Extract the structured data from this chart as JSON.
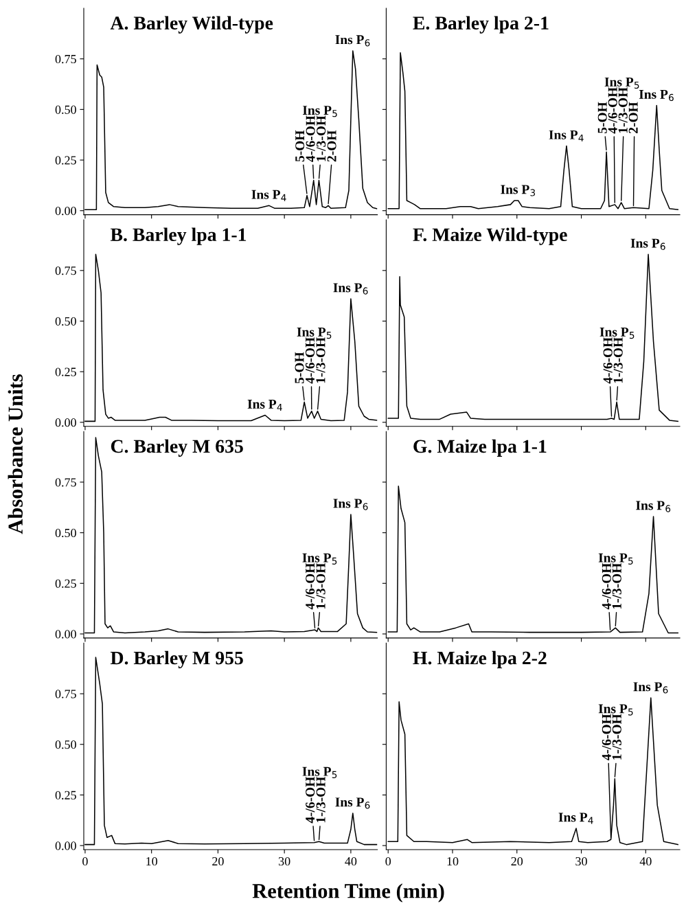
{
  "chart_data": [
    {
      "type": "line",
      "title": "A. Barley Wild-type",
      "xlim": [
        -0.2,
        44
      ],
      "xticks": [
        0,
        10,
        20,
        30,
        40
      ],
      "ylim": [
        -0.02,
        1.0
      ],
      "yticks": [
        {
          "value": 0,
          "label": "0.00"
        },
        {
          "value": 0.25,
          "label": "0.25"
        },
        {
          "value": 0.5,
          "label": "0.50"
        },
        {
          "value": 0.75,
          "label": "0.75"
        }
      ],
      "tick_labels": "y",
      "grid": false,
      "legend": false,
      "series": [
        {
          "color": "#000000",
          "x": [
            0,
            1.7,
            1.8,
            2.2,
            2.5,
            2.8,
            3.1,
            3.5,
            4.3,
            6,
            9,
            11,
            12.7,
            14,
            18,
            22,
            26,
            27.7,
            28.5,
            31,
            33,
            33.4,
            33.8,
            34.4,
            34.8,
            35.2,
            35.7,
            36.2,
            36.6,
            37,
            39.2,
            39.7,
            40.0,
            40.3,
            40.7,
            41.2,
            41.8,
            42.5,
            43.3,
            43.9
          ],
          "values": [
            0.005,
            0.005,
            0.72,
            0.67,
            0.66,
            0.61,
            0.09,
            0.04,
            0.02,
            0.015,
            0.015,
            0.02,
            0.03,
            0.02,
            0.015,
            0.012,
            0.012,
            0.025,
            0.012,
            0.012,
            0.015,
            0.075,
            0.02,
            0.15,
            0.03,
            0.15,
            0.02,
            0.015,
            0.025,
            0.012,
            0.015,
            0.1,
            0.45,
            0.79,
            0.7,
            0.45,
            0.11,
            0.04,
            0.015,
            0.01
          ]
        }
      ],
      "annotations": [
        {
          "text": "Ins P$_{4}$",
          "x": 27.7,
          "y": 0.025
        },
        {
          "text": "5-OH",
          "x": 33.4,
          "y": 0.075
        },
        {
          "text": "4-/6-OH",
          "x": 34.4,
          "y": 0.15
        },
        {
          "text": "1-/3-OH",
          "x": 35.2,
          "y": 0.15
        },
        {
          "text": "2-OH",
          "x": 36.6,
          "y": 0.025
        },
        "Ins P$_{5}$",
        {
          "text": "Ins P$_{6}$",
          "x": 40.3,
          "y": 0.79
        }
      ]
    },
    {
      "type": "line",
      "title": "E. Barley lpa 2-1",
      "xlim": [
        -0.3,
        45.3
      ],
      "xticks": [
        0,
        10,
        20,
        30,
        40
      ],
      "ylim": [
        -0.02,
        1.0
      ],
      "yticks": [
        {
          "value": 0,
          "label": null
        },
        {
          "value": 0.25,
          "label": null
        },
        {
          "value": 0.5,
          "label": null
        },
        {
          "value": 0.75,
          "label": null
        }
      ],
      "tick_labels": false,
      "grid": false,
      "legend": false,
      "series": [
        {
          "color": "#000000",
          "x": [
            0,
            1.7,
            1.9,
            2.3,
            2.6,
            2.9,
            3.5,
            4.1,
            5,
            7,
            9,
            11.2,
            12.8,
            14,
            17,
            19.0,
            19.6,
            20.2,
            20.8,
            22,
            25,
            26.8,
            27.3,
            27.7,
            28.1,
            28.6,
            30,
            33,
            33.6,
            33.9,
            34.3,
            35.2,
            35.7,
            36.2,
            36.7,
            38.1,
            40.5,
            41.1,
            41.7,
            42.1,
            42.5,
            43.7,
            45
          ],
          "values": [
            0.01,
            0.01,
            0.78,
            0.68,
            0.59,
            0.05,
            0.04,
            0.03,
            0.01,
            0.01,
            0.01,
            0.02,
            0.02,
            0.01,
            0.02,
            0.03,
            0.05,
            0.05,
            0.02,
            0.015,
            0.01,
            0.02,
            0.2,
            0.32,
            0.2,
            0.02,
            0.01,
            0.01,
            0.05,
            0.29,
            0.02,
            0.03,
            0.01,
            0.04,
            0.01,
            0.015,
            0.01,
            0.2,
            0.52,
            0.3,
            0.1,
            0.01,
            0.005
          ]
        }
      ],
      "annotations": [
        {
          "text": "Ins P$_{3}$",
          "x": 20.2,
          "y": 0.05
        },
        {
          "text": "Ins P$_{4}$",
          "x": 27.7,
          "y": 0.32
        },
        {
          "text": "5-OH",
          "x": 33.9,
          "y": 0.29
        },
        {
          "text": "4-/6-OH",
          "x": 35.2,
          "y": 0.03
        },
        {
          "text": "1-/3-OH",
          "x": 36.2,
          "y": 0.04
        },
        {
          "text": "2-OH",
          "x": 38.1,
          "y": 0.015
        },
        "Ins P$_{5}$",
        {
          "text": "Ins P$_{6}$",
          "x": 41.7,
          "y": 0.52
        }
      ]
    },
    {
      "type": "line",
      "title": "B. Barley lpa 1-1",
      "xlim": [
        -0.2,
        44
      ],
      "xticks": [
        0,
        10,
        20,
        30,
        40
      ],
      "ylim": [
        -0.02,
        1.0
      ],
      "yticks": [
        {
          "value": 0,
          "label": "0.00"
        },
        {
          "value": 0.25,
          "label": "0.25"
        },
        {
          "value": 0.5,
          "label": "0.50"
        },
        {
          "value": 0.75,
          "label": "0.75"
        }
      ],
      "tick_labels": "y",
      "grid": false,
      "legend": false,
      "series": [
        {
          "color": "#000000",
          "x": [
            0,
            1.5,
            1.6,
            2.0,
            2.4,
            2.7,
            3.1,
            3.5,
            3.9,
            4.5,
            6,
            9,
            10.5,
            11.2,
            12.1,
            13,
            16,
            20,
            25,
            27.1,
            28,
            30,
            32.5,
            33.0,
            33.5,
            34.1,
            34.5,
            35.0,
            35.5,
            37,
            39,
            39.5,
            40.0,
            40.6,
            41.2,
            42,
            42.7,
            43.9
          ],
          "values": [
            0.005,
            0.005,
            0.83,
            0.75,
            0.64,
            0.16,
            0.04,
            0.02,
            0.025,
            0.01,
            0.01,
            0.01,
            0.02,
            0.025,
            0.025,
            0.01,
            0.01,
            0.008,
            0.008,
            0.035,
            0.01,
            0.008,
            0.01,
            0.1,
            0.02,
            0.055,
            0.02,
            0.055,
            0.015,
            0.008,
            0.01,
            0.15,
            0.61,
            0.4,
            0.08,
            0.03,
            0.015,
            0.01
          ]
        }
      ],
      "annotations": [
        {
          "text": "Ins P$_{4}$",
          "x": 27.1,
          "y": 0.035
        },
        {
          "text": "5-OH",
          "x": 33.0,
          "y": 0.1
        },
        {
          "text": "4-/6-OH",
          "x": 34.1,
          "y": 0.055
        },
        {
          "text": "1-/3-OH",
          "x": 35.0,
          "y": 0.055
        },
        "Ins P$_{5}$",
        {
          "text": "Ins P$_{6}$",
          "x": 40.0,
          "y": 0.61
        }
      ]
    },
    {
      "type": "line",
      "title": "F. Maize Wild-type",
      "xlim": [
        -0.3,
        45.3
      ],
      "xticks": [
        0,
        10,
        20,
        30,
        40
      ],
      "ylim": [
        -0.02,
        1.0
      ],
      "yticks": [
        {
          "value": 0,
          "label": null
        },
        {
          "value": 0.25,
          "label": null
        },
        {
          "value": 0.5,
          "label": null
        },
        {
          "value": 0.75,
          "label": null
        }
      ],
      "tick_labels": false,
      "grid": false,
      "legend": false,
      "series": [
        {
          "color": "#000000",
          "x": [
            0,
            1.6,
            1.8,
            1.9,
            2.5,
            2.9,
            3.5,
            5,
            8,
            9.7,
            12.2,
            12.8,
            15,
            20,
            25,
            30,
            34,
            34.7,
            35.1,
            35.5,
            35.9,
            39,
            39.7,
            40.4,
            41.2,
            42.1,
            43.7,
            45
          ],
          "values": [
            0.02,
            0.02,
            0.72,
            0.58,
            0.52,
            0.08,
            0.02,
            0.015,
            0.015,
            0.04,
            0.05,
            0.02,
            0.015,
            0.015,
            0.015,
            0.015,
            0.015,
            0.02,
            0.015,
            0.1,
            0.015,
            0.015,
            0.3,
            0.83,
            0.4,
            0.06,
            0.01,
            0.005
          ]
        }
      ],
      "annotations": [
        {
          "text": "4-/6-OH",
          "x": 34.7,
          "y": 0.02
        },
        {
          "text": "1-/3-OH",
          "x": 35.5,
          "y": 0.1
        },
        "Ins P$_{5}$",
        {
          "text": "Ins P$_{6}$",
          "x": 40.4,
          "y": 0.83
        }
      ]
    },
    {
      "type": "line",
      "title": "C. Barley M 635",
      "ylabel": "Absorbance Units",
      "xlim": [
        -0.2,
        44
      ],
      "xticks": [
        0,
        10,
        20,
        30,
        40
      ],
      "ylim": [
        -0.02,
        1.0
      ],
      "yticks": [
        {
          "value": 0,
          "label": "0.00"
        },
        {
          "value": 0.25,
          "label": "0.25"
        },
        {
          "value": 0.5,
          "label": "0.50"
        },
        {
          "value": 0.75,
          "label": "0.75"
        }
      ],
      "tick_labels": "y",
      "grid": false,
      "legend": false,
      "series": [
        {
          "color": "#000000",
          "x": [
            0,
            1.4,
            1.6,
            2.0,
            2.5,
            2.8,
            3.0,
            3.4,
            3.8,
            4.3,
            6,
            9,
            11,
            12.5,
            14,
            18,
            24,
            28,
            30,
            33,
            34.6,
            34.9,
            35.1,
            35.5,
            38,
            39.3,
            39.7,
            40.0,
            40.4,
            41.0,
            41.8,
            42.5,
            43.9
          ],
          "values": [
            0.005,
            0.005,
            0.97,
            0.88,
            0.8,
            0.5,
            0.05,
            0.03,
            0.04,
            0.01,
            0.005,
            0.01,
            0.015,
            0.025,
            0.01,
            0.008,
            0.01,
            0.015,
            0.01,
            0.012,
            0.02,
            0.012,
            0.03,
            0.012,
            0.012,
            0.05,
            0.35,
            0.59,
            0.4,
            0.1,
            0.03,
            0.01,
            0.008
          ]
        }
      ],
      "annotations": [
        {
          "text": "4-/6-OH",
          "x": 34.6,
          "y": 0.02
        },
        {
          "text": "1-/3-OH",
          "x": 35.1,
          "y": 0.03
        },
        "Ins P$_{5}$",
        {
          "text": "Ins P$_{6}$",
          "x": 40.0,
          "y": 0.59
        }
      ]
    },
    {
      "type": "line",
      "title": "G. Maize lpa 1-1",
      "xlim": [
        -0.3,
        45.3
      ],
      "xticks": [
        0,
        10,
        20,
        30,
        40
      ],
      "ylim": [
        -0.02,
        1.0
      ],
      "yticks": [
        {
          "value": 0,
          "label": null
        },
        {
          "value": 0.25,
          "label": null
        },
        {
          "value": 0.5,
          "label": null
        },
        {
          "value": 0.75,
          "label": null
        }
      ],
      "tick_labels": false,
      "grid": false,
      "legend": false,
      "series": [
        {
          "color": "#000000",
          "x": [
            0,
            1.4,
            1.6,
            2.0,
            2.6,
            2.9,
            3.5,
            4.0,
            5,
            8,
            10.5,
            12.5,
            13,
            16,
            22,
            30,
            34.5,
            35.3,
            36,
            39.5,
            40.5,
            41.2,
            42,
            43.5,
            45
          ],
          "values": [
            0.01,
            0.01,
            0.73,
            0.62,
            0.55,
            0.05,
            0.02,
            0.03,
            0.01,
            0.01,
            0.03,
            0.05,
            0.01,
            0.01,
            0.008,
            0.008,
            0.01,
            0.03,
            0.008,
            0.01,
            0.2,
            0.58,
            0.1,
            0.005,
            0.005
          ]
        }
      ],
      "annotations": [
        {
          "text": "4-/6-OH",
          "x": 34.5,
          "y": 0.01
        },
        {
          "text": "1-/3-OH",
          "x": 35.3,
          "y": 0.03
        },
        "Ins P$_{5}$",
        {
          "text": "Ins P$_{6}$",
          "x": 41.2,
          "y": 0.58
        }
      ]
    },
    {
      "type": "line",
      "title": "D. Barley M 955",
      "xlabel": "Retention Time (min)",
      "xlim": [
        -0.2,
        44
      ],
      "xticks": [
        0,
        10,
        20,
        30,
        40
      ],
      "ylim": [
        -0.02,
        1.0
      ],
      "yticks": [
        {
          "value": 0,
          "label": "0.00"
        },
        {
          "value": 0.25,
          "label": "0.25"
        },
        {
          "value": 0.5,
          "label": "0.50"
        },
        {
          "value": 0.75,
          "label": "0.75"
        }
      ],
      "grid": false,
      "legend": false,
      "series": [
        {
          "color": "#000000",
          "x": [
            0,
            1.4,
            1.6,
            2.2,
            2.6,
            2.9,
            3.3,
            4.0,
            4.5,
            6,
            8.5,
            10,
            12.5,
            14,
            18,
            24,
            30,
            34.5,
            35.2,
            36,
            39.5,
            40.0,
            40.3,
            40.6,
            40.9,
            42,
            43.9
          ],
          "values": [
            0.005,
            0.005,
            0.93,
            0.8,
            0.7,
            0.1,
            0.04,
            0.05,
            0.01,
            0.008,
            0.012,
            0.01,
            0.025,
            0.01,
            0.008,
            0.01,
            0.012,
            0.015,
            0.02,
            0.012,
            0.012,
            0.08,
            0.16,
            0.08,
            0.02,
            0.005,
            0.005
          ]
        }
      ],
      "annotations": [
        {
          "text": "4-/6-OH",
          "x": 34.5,
          "y": 0.015
        },
        {
          "text": "1-/3-OH",
          "x": 35.2,
          "y": 0.02
        },
        "Ins P$_{5}$",
        {
          "text": "Ins P$_{6}$",
          "x": 40.3,
          "y": 0.16
        }
      ]
    },
    {
      "type": "line",
      "title": "H. Maize lpa 2-2",
      "xlim": [
        -0.3,
        45.3
      ],
      "xticks": [
        0,
        10,
        20,
        30,
        40
      ],
      "ylim": [
        -0.02,
        1.0
      ],
      "yticks": [
        {
          "value": 0,
          "label": null
        },
        {
          "value": 0.25,
          "label": null
        },
        {
          "value": 0.5,
          "label": null
        },
        {
          "value": 0.75,
          "label": null
        }
      ],
      "tick_labels": "x",
      "grid": false,
      "legend": false,
      "series": [
        {
          "color": "#000000",
          "x": [
            0,
            1.5,
            1.7,
            2.0,
            2.6,
            2.9,
            4.0,
            6,
            10,
            12.3,
            13,
            19,
            25,
            28.5,
            29.2,
            29.6,
            31,
            34.0,
            34.6,
            35.0,
            35.2,
            35.5,
            36,
            37,
            39.5,
            40.2,
            40.8,
            41.8,
            42.8,
            45
          ],
          "values": [
            0.02,
            0.02,
            0.71,
            0.62,
            0.55,
            0.05,
            0.02,
            0.02,
            0.015,
            0.03,
            0.015,
            0.02,
            0.015,
            0.02,
            0.085,
            0.02,
            0.015,
            0.02,
            0.03,
            0.2,
            0.33,
            0.1,
            0.015,
            0.005,
            0.02,
            0.4,
            0.73,
            0.2,
            0.02,
            0.005
          ]
        }
      ],
      "annotations": [
        {
          "text": "Ins P$_{4}$",
          "x": 29.2,
          "y": 0.085
        },
        {
          "text": "4-/6-OH",
          "x": 34.6,
          "y": 0.03
        },
        {
          "text": "1-/3-OH",
          "x": 35.2,
          "y": 0.33
        },
        "Ins P$_{5}$",
        {
          "text": "Ins P$_{6}$",
          "x": 40.8,
          "y": 0.73
        }
      ]
    }
  ]
}
